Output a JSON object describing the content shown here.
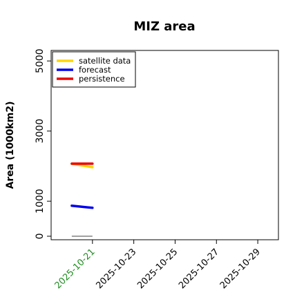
{
  "chart_data": {
    "type": "line",
    "title": "MIZ area",
    "xlabel": "",
    "ylabel": "Area (1000km2)",
    "ylim": [
      -100,
      5300
    ],
    "xlim": [
      "2025-10-19",
      "2025-10-30"
    ],
    "y_ticks": [
      0,
      1000,
      3000,
      5000
    ],
    "x_ticks": [
      "2025-10-21",
      "2025-10-23",
      "2025-10-25",
      "2025-10-27",
      "2025-10-29"
    ],
    "x_tick_colors": [
      "#228B22",
      "#000000",
      "#000000",
      "#000000",
      "#000000"
    ],
    "legend_position": "top-left",
    "grid": false,
    "series": [
      {
        "name": "satellite data",
        "color": "#FFD700",
        "x": [
          "2025-10-20",
          "2025-10-21"
        ],
        "y": [
          2070,
          1970
        ]
      },
      {
        "name": "forecast",
        "color": "#0000EE",
        "x": [
          "2025-10-20",
          "2025-10-21"
        ],
        "y": [
          870,
          810
        ]
      },
      {
        "name": "persistence",
        "color": "#EE0000",
        "x": [
          "2025-10-20",
          "2025-10-21"
        ],
        "y": [
          2070,
          2070
        ]
      }
    ],
    "reference_line": {
      "color": "#808080",
      "x": [
        "2025-10-20",
        "2025-10-21"
      ],
      "y": [
        0,
        0
      ]
    }
  }
}
